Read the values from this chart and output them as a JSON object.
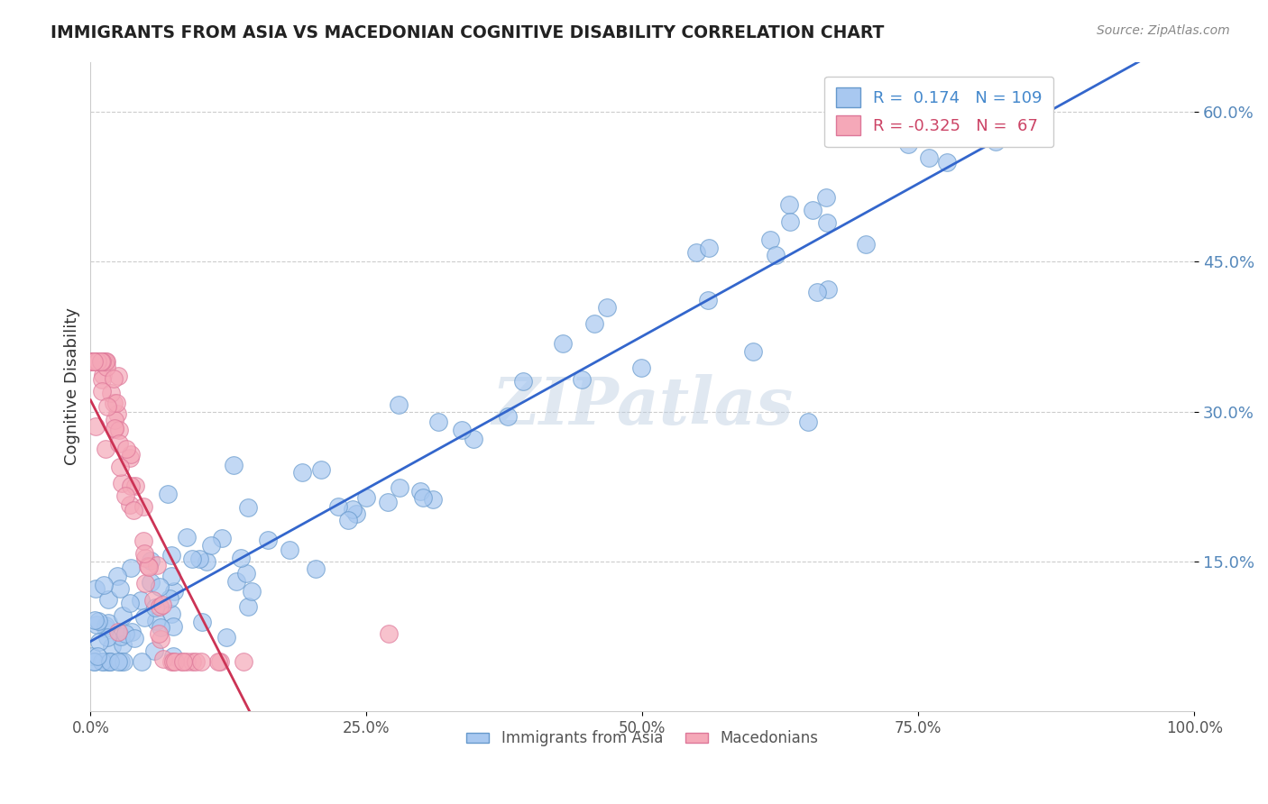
{
  "title": "IMMIGRANTS FROM ASIA VS MACEDONIAN COGNITIVE DISABILITY CORRELATION CHART",
  "source": "Source: ZipAtlas.com",
  "ylabel": "Cognitive Disability",
  "x_min": 0.0,
  "x_max": 1.0,
  "y_min": 0.0,
  "y_max": 0.65,
  "y_ticks": [
    0.15,
    0.3,
    0.45,
    0.6
  ],
  "y_tick_labels": [
    "15.0%",
    "30.0%",
    "45.0%",
    "60.0%"
  ],
  "x_ticks": [
    0.0,
    0.25,
    0.5,
    0.75,
    1.0
  ],
  "x_tick_labels": [
    "0.0%",
    "25.0%",
    "50.0%",
    "75.0%",
    "100.0%"
  ],
  "legend_items": [
    {
      "label": "R =  0.174   N = 109",
      "color": "#a8c8f0",
      "text_color": "#4488cc"
    },
    {
      "label": "R = -0.325   N =  67",
      "color": "#f5a8b8",
      "text_color": "#cc4466"
    }
  ],
  "blue_R": 0.174,
  "blue_N": 109,
  "pink_R": -0.325,
  "pink_N": 67,
  "blue_line_color": "#3366cc",
  "pink_line_color": "#cc3355",
  "pink_dash_color": "#ffaacc",
  "blue_dot_color": "#a8c8f0",
  "pink_dot_color": "#f5a8b8",
  "blue_dot_edge": "#6699cc",
  "pink_dot_edge": "#dd7799",
  "watermark": "ZIPatlas",
  "background_color": "#ffffff",
  "grid_color": "#cccccc"
}
